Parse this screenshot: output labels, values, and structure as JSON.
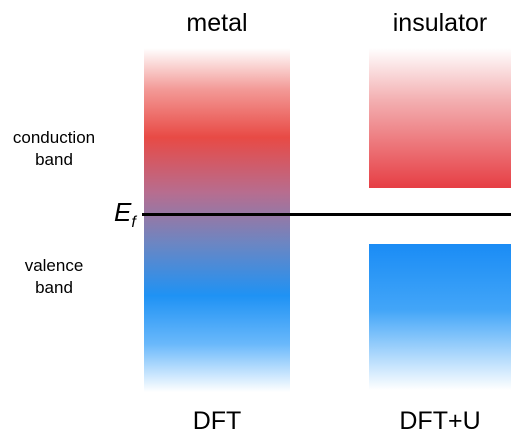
{
  "columns": {
    "left_title": "metal",
    "right_title": "insulator",
    "left_method": "DFT",
    "right_method": "DFT+U"
  },
  "bands": {
    "conduction_line1": "conduction",
    "conduction_line2": "band",
    "valence_line1": "valence",
    "valence_line2": "band"
  },
  "fermi": {
    "symbol": "E",
    "subscript": "f"
  },
  "colors": {
    "conduction": "#e84a45",
    "valence": "#1f92f4",
    "fermi_line": "#000000"
  }
}
